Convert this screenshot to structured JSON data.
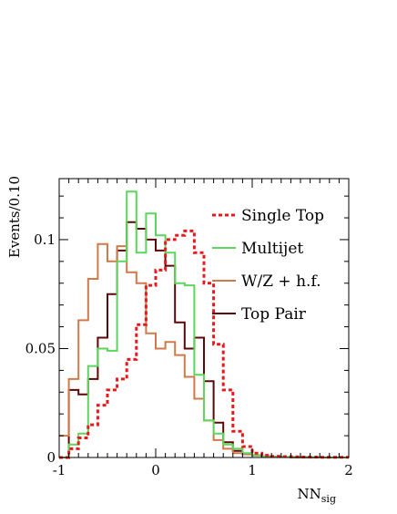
{
  "chart_data": {
    "type": "line",
    "title": "",
    "ylabel": "Events/0.10",
    "xlabel_main": "NN",
    "xlabel_sub": "sig",
    "xlim": [
      -1,
      2
    ],
    "ylim": [
      0,
      0.128
    ],
    "x_ticks": [
      -1,
      0,
      1,
      2
    ],
    "x_tick_labels": [
      "-1",
      "0",
      "1",
      "2"
    ],
    "y_ticks": [
      0,
      0.05,
      0.1
    ],
    "y_tick_labels": [
      "0",
      "0.05",
      "0.1"
    ],
    "grid": false,
    "legend_position": "top-right",
    "bin_edges": [
      -1.0,
      -0.9,
      -0.8,
      -0.7,
      -0.6,
      -0.5,
      -0.4,
      -0.3,
      -0.2,
      -0.1,
      0.0,
      0.1,
      0.2,
      0.3,
      0.4,
      0.5,
      0.6,
      0.7,
      0.8,
      0.9,
      1.0,
      1.1,
      1.2,
      1.3,
      1.4,
      1.5,
      1.6,
      1.7,
      1.8,
      1.9,
      2.0
    ],
    "series": [
      {
        "name": "Single Top",
        "color": "#e8191c",
        "style": "dotted",
        "values": [
          0.0,
          0.004,
          0.009,
          0.015,
          0.024,
          0.031,
          0.036,
          0.045,
          0.061,
          0.079,
          0.086,
          0.1,
          0.102,
          0.104,
          0.094,
          0.08,
          0.052,
          0.031,
          0.012,
          0.005,
          0.002,
          0.001,
          0.0005,
          0.0004,
          0.0003,
          0.0002,
          0.0002,
          0.0001,
          0.0001,
          0.0001
        ]
      },
      {
        "name": "Multijet",
        "color": "#5cd65c",
        "style": "solid",
        "values": [
          0.0,
          0.006,
          0.011,
          0.042,
          0.05,
          0.049,
          0.09,
          0.122,
          0.094,
          0.112,
          0.102,
          0.094,
          0.08,
          0.079,
          0.038,
          0.017,
          0.011,
          0.006,
          0.004,
          0.002,
          0.001,
          0.0005,
          0.0003,
          0.0002,
          0.0001,
          0.0001,
          0.0001,
          0.0,
          0.0,
          0.0
        ]
      },
      {
        "name": "W/Z + h.f.",
        "color": "#d2794a",
        "style": "solid",
        "values": [
          0.01,
          0.036,
          0.063,
          0.082,
          0.098,
          0.09,
          0.097,
          0.085,
          0.08,
          0.057,
          0.05,
          0.053,
          0.047,
          0.037,
          0.027,
          0.017,
          0.008,
          0.004,
          0.002,
          0.0015,
          0.001,
          0.0005,
          0.0003,
          0.0002,
          0.0001,
          0.0001,
          0.0,
          0.0,
          0.0,
          0.0
        ]
      },
      {
        "name": "Top Pair",
        "color": "#5c0808",
        "style": "solid",
        "values": [
          0.0,
          0.031,
          0.029,
          0.036,
          0.055,
          0.075,
          0.095,
          0.108,
          0.105,
          0.1,
          0.095,
          0.088,
          0.062,
          0.05,
          0.055,
          0.035,
          0.016,
          0.007,
          0.003,
          0.0015,
          0.001,
          0.0005,
          0.0003,
          0.0002,
          0.0001,
          0.0001,
          0.0,
          0.0,
          0.0,
          0.0
        ]
      }
    ]
  }
}
